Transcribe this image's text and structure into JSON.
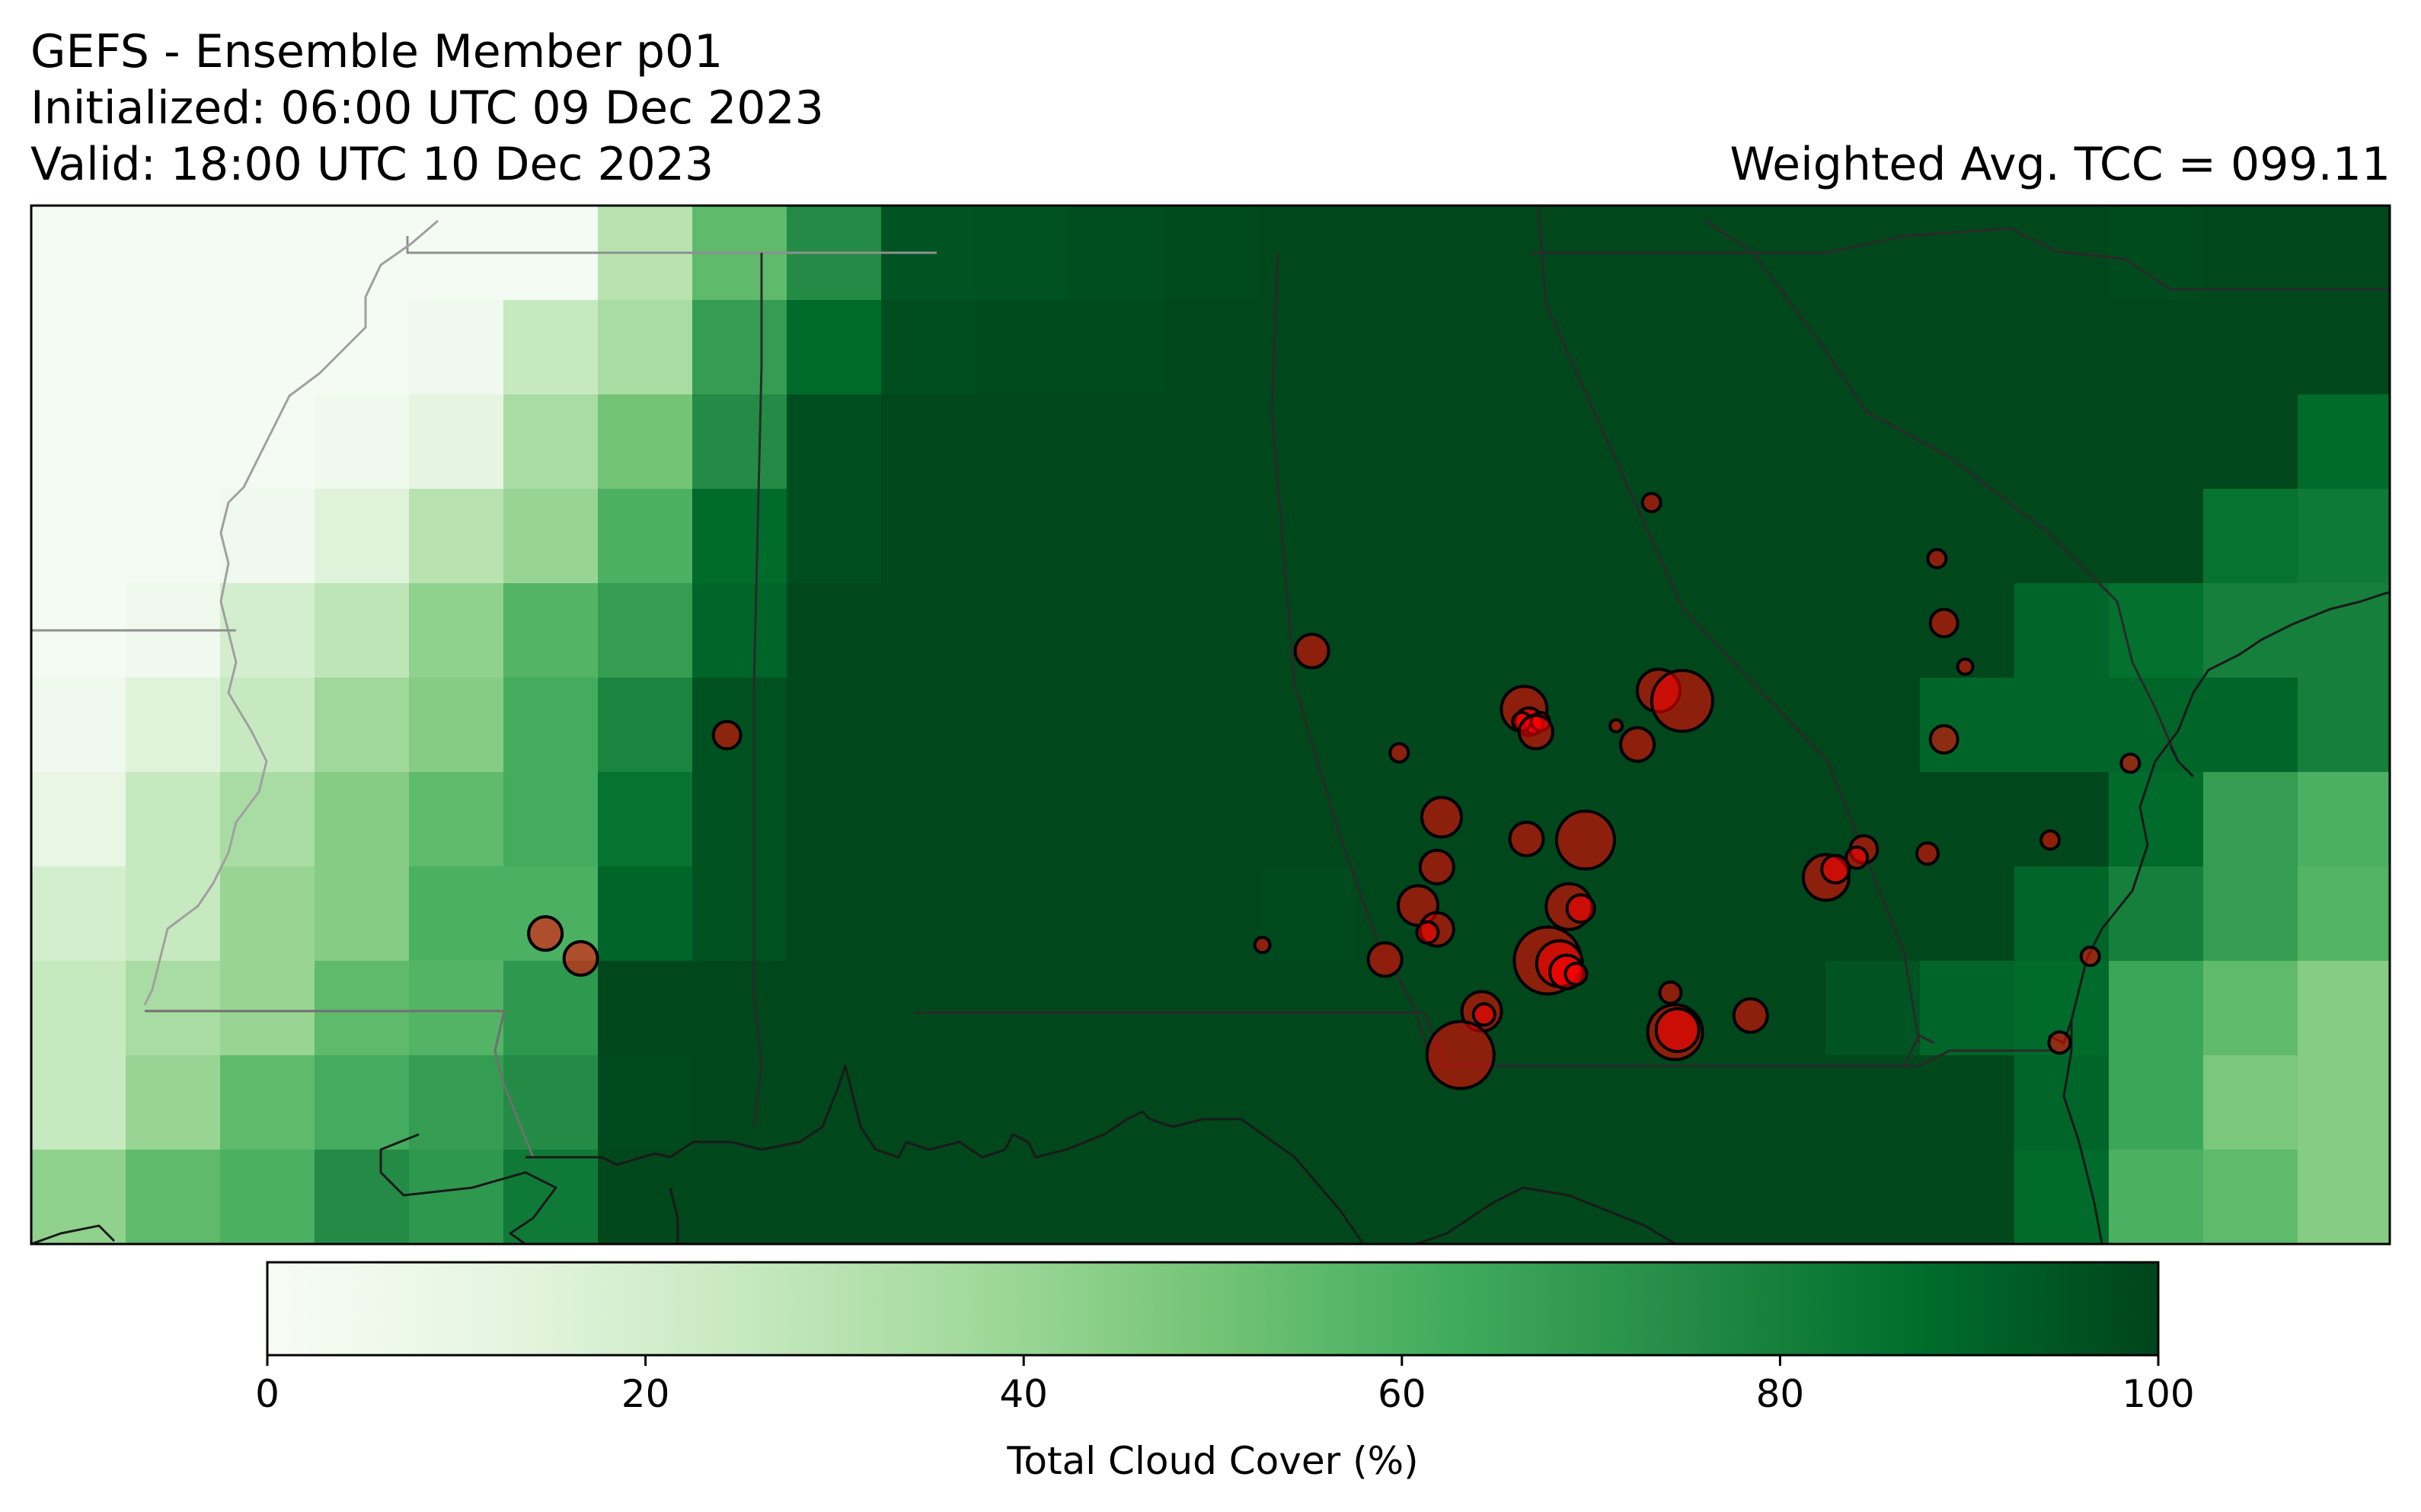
{
  "title": {
    "line1": "GEFS - Ensemble Member p01",
    "line2": "Initialized: 06:00 UTC 09 Dec 2023",
    "line3": "Valid: 18:00 UTC 10 Dec 2023",
    "right": "Weighted Avg. TCC = 099.11"
  },
  "colorbar": {
    "label": "Total Cloud Cover (%)",
    "ticks": [
      "0",
      "20",
      "40",
      "60",
      "80",
      "100"
    ],
    "range": [
      0,
      100
    ],
    "colormap": "Greens",
    "colors": [
      "#f7fcf5",
      "#e5f5e0",
      "#c7e9c0",
      "#a1d99b",
      "#74c476",
      "#41ab5d",
      "#238b45",
      "#006d2c",
      "#00441b"
    ]
  },
  "map": {
    "feature_colors": {
      "borders": "#1a1a1a",
      "markers_fill": "#ff0000",
      "markers_edge": "#000000"
    },
    "grid_values": [
      [
        2,
        2,
        2,
        2,
        2,
        2,
        30,
        55,
        75,
        95,
        96,
        97,
        98,
        99,
        99,
        99,
        99,
        99,
        99,
        99,
        99,
        99,
        98,
        99,
        99
      ],
      [
        2,
        2,
        2,
        2,
        5,
        25,
        35,
        68,
        88,
        97,
        98,
        98,
        99,
        99,
        99,
        99,
        99,
        99,
        99,
        99,
        99,
        99,
        99,
        99,
        99
      ],
      [
        2,
        2,
        2,
        5,
        12,
        35,
        50,
        75,
        97,
        99,
        99,
        99,
        99,
        99,
        99,
        99,
        99,
        99,
        99,
        99,
        99,
        99,
        99,
        99,
        88
      ],
      [
        2,
        2,
        5,
        15,
        30,
        40,
        60,
        88,
        97,
        99,
        99,
        99,
        99,
        99,
        99,
        99,
        99,
        99,
        99,
        99,
        99,
        99,
        99,
        85,
        82
      ],
      [
        2,
        5,
        20,
        28,
        42,
        58,
        68,
        90,
        99,
        99,
        99,
        99,
        99,
        99,
        99,
        99,
        99,
        99,
        99,
        99,
        99,
        90,
        86,
        80,
        80
      ],
      [
        5,
        15,
        25,
        38,
        45,
        62,
        78,
        96,
        99,
        99,
        99,
        99,
        99,
        99,
        99,
        99,
        99,
        99,
        99,
        99,
        90,
        90,
        90,
        90,
        80
      ],
      [
        10,
        25,
        35,
        45,
        55,
        62,
        85,
        96,
        99,
        99,
        99,
        99,
        99,
        99,
        99,
        99,
        99,
        99,
        99,
        99,
        99,
        99,
        88,
        68,
        60
      ],
      [
        20,
        25,
        40,
        45,
        60,
        60,
        90,
        96,
        99,
        99,
        99,
        99,
        99,
        98,
        99,
        99,
        99,
        99,
        99,
        99,
        99,
        90,
        80,
        68,
        58
      ],
      [
        25,
        35,
        40,
        55,
        58,
        70,
        99,
        99,
        99,
        99,
        99,
        99,
        99,
        99,
        99,
        99,
        99,
        99,
        99,
        95,
        90,
        88,
        65,
        55,
        45
      ],
      [
        25,
        40,
        55,
        62,
        68,
        75,
        98,
        99,
        99,
        99,
        99,
        99,
        99,
        99,
        99,
        99,
        99,
        99,
        99,
        99,
        99,
        90,
        65,
        48,
        45
      ],
      [
        42,
        55,
        60,
        75,
        70,
        82,
        99,
        99,
        99,
        99,
        99,
        99,
        99,
        99,
        99,
        99,
        99,
        99,
        99,
        99,
        99,
        88,
        60,
        55,
        45
      ]
    ],
    "markers": [
      [
        0.687,
        0.286,
        6
      ],
      [
        0.808,
        0.34,
        6
      ],
      [
        0.811,
        0.402,
        9
      ],
      [
        0.82,
        0.444,
        5
      ],
      [
        0.543,
        0.429,
        11
      ],
      [
        0.295,
        0.51,
        9
      ],
      [
        0.58,
        0.527,
        6
      ],
      [
        0.633,
        0.485,
        15
      ],
      [
        0.635,
        0.497,
        9
      ],
      [
        0.637,
        0.5,
        6
      ],
      [
        0.632,
        0.497,
        6
      ],
      [
        0.64,
        0.497,
        6
      ],
      [
        0.638,
        0.507,
        11
      ],
      [
        0.672,
        0.501,
        4
      ],
      [
        0.69,
        0.467,
        14
      ],
      [
        0.7,
        0.477,
        20
      ],
      [
        0.681,
        0.519,
        11
      ],
      [
        0.811,
        0.514,
        9
      ],
      [
        0.89,
        0.537,
        6
      ],
      [
        0.598,
        0.589,
        13
      ],
      [
        0.634,
        0.61,
        11
      ],
      [
        0.659,
        0.611,
        19
      ],
      [
        0.596,
        0.637,
        11
      ],
      [
        0.804,
        0.624,
        7
      ],
      [
        0.777,
        0.62,
        9
      ],
      [
        0.774,
        0.628,
        7
      ],
      [
        0.761,
        0.647,
        15
      ],
      [
        0.765,
        0.639,
        9
      ],
      [
        0.856,
        0.611,
        6
      ],
      [
        0.652,
        0.675,
        15
      ],
      [
        0.657,
        0.677,
        9
      ],
      [
        0.588,
        0.674,
        13
      ],
      [
        0.596,
        0.697,
        11
      ],
      [
        0.592,
        0.7,
        7
      ],
      [
        0.522,
        0.712,
        5
      ],
      [
        0.218,
        0.701,
        11
      ],
      [
        0.233,
        0.725,
        11
      ],
      [
        0.574,
        0.726,
        11
      ],
      [
        0.643,
        0.727,
        22
      ],
      [
        0.648,
        0.73,
        15
      ],
      [
        0.651,
        0.738,
        11
      ],
      [
        0.655,
        0.74,
        7
      ],
      [
        0.695,
        0.758,
        7
      ],
      [
        0.615,
        0.776,
        13
      ],
      [
        0.616,
        0.779,
        7
      ],
      [
        0.729,
        0.78,
        11
      ],
      [
        0.873,
        0.723,
        6
      ],
      [
        0.697,
        0.796,
        18
      ],
      [
        0.698,
        0.794,
        14
      ],
      [
        0.606,
        0.818,
        22
      ],
      [
        0.86,
        0.806,
        7
      ]
    ]
  }
}
